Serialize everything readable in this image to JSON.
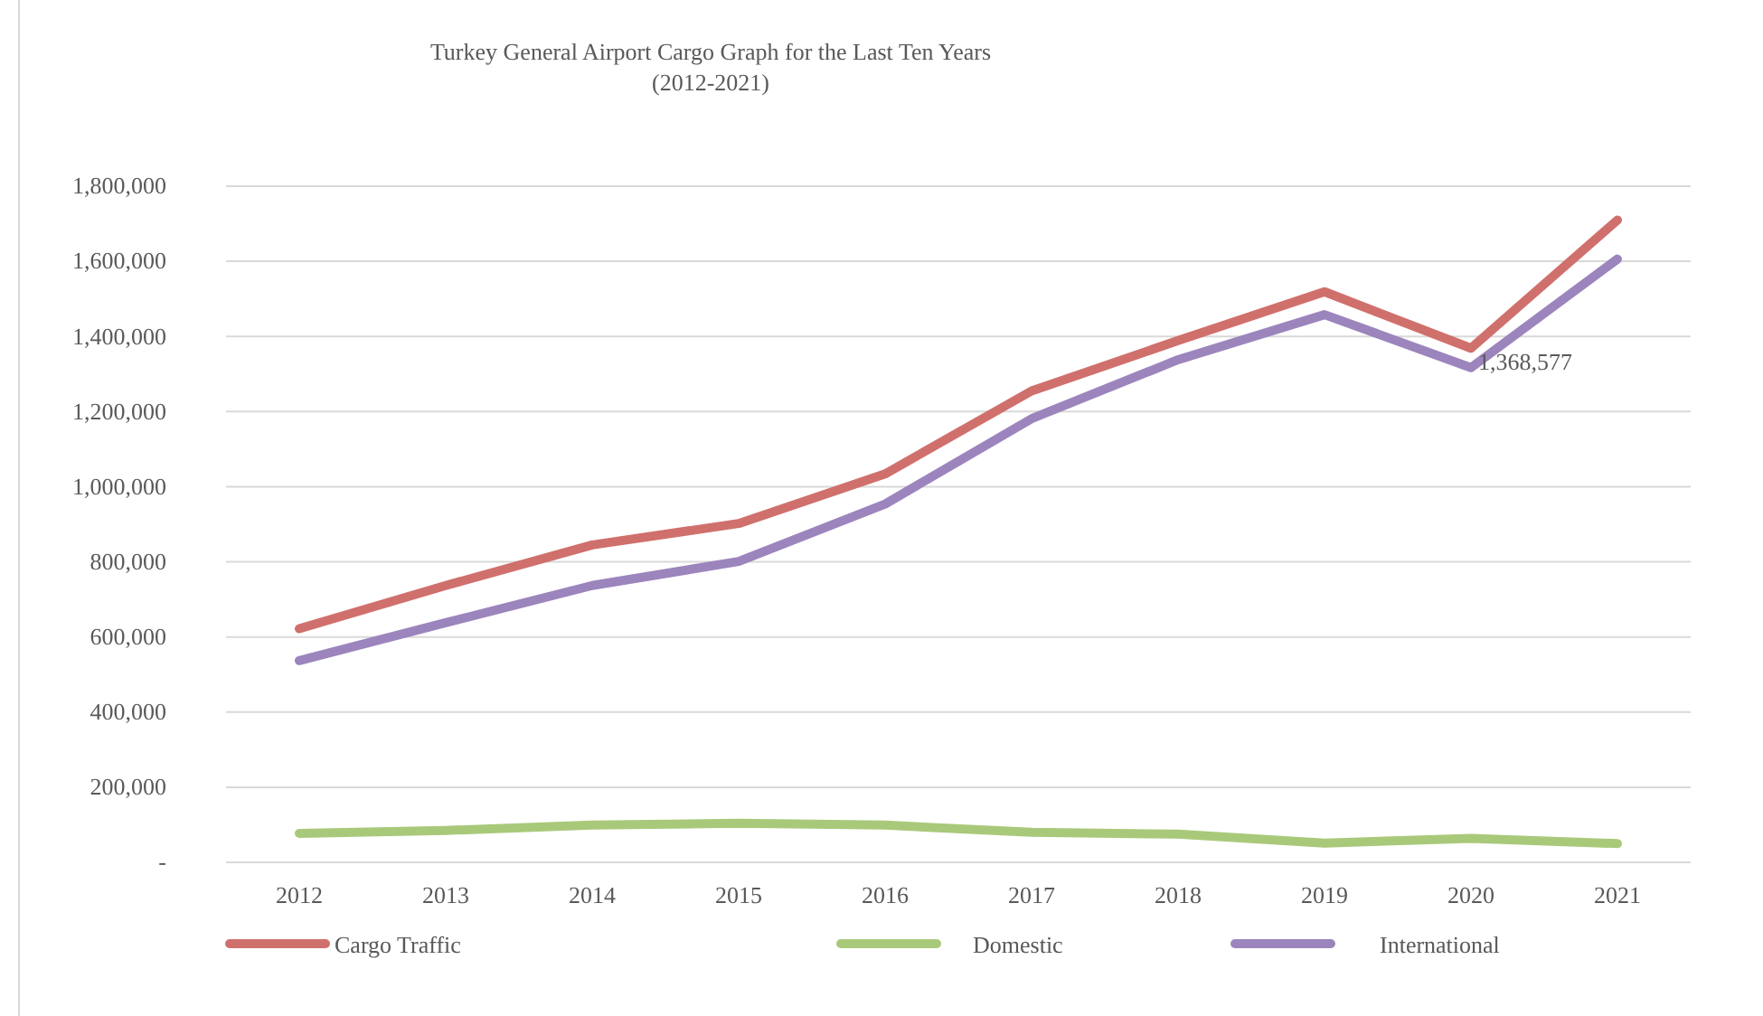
{
  "chart_data": {
    "type": "line",
    "title": "Turkey General Airport Cargo Graph for the Last Ten Years",
    "subtitle": "(2012-2021)",
    "categories": [
      "2012",
      "2013",
      "2014",
      "2015",
      "2016",
      "2017",
      "2018",
      "2019",
      "2020",
      "2021"
    ],
    "series": [
      {
        "name": "Cargo Traffic",
        "color": "#d0706c",
        "values": [
          622000,
          737000,
          845000,
          902000,
          1034000,
          1255000,
          1389000,
          1519000,
          1368577,
          1710000
        ],
        "value_labels": [
          null,
          null,
          null,
          null,
          null,
          null,
          null,
          null,
          "1,368,577",
          null
        ]
      },
      {
        "name": "Domestic",
        "color": "#a9c97a",
        "values": [
          77000,
          85000,
          99000,
          104000,
          99000,
          80000,
          75000,
          51000,
          64000,
          50000
        ]
      },
      {
        "name": "International",
        "color": "#9c85bd",
        "values": [
          537000,
          638000,
          737000,
          801000,
          954000,
          1181000,
          1338000,
          1458000,
          1317000,
          1606000
        ]
      }
    ],
    "ylim": [
      0,
      1800000
    ],
    "yticks": [
      {
        "value": 0,
        "label": "-"
      },
      {
        "value": 200000,
        "label": "200,000"
      },
      {
        "value": 400000,
        "label": "400,000"
      },
      {
        "value": 600000,
        "label": "600,000"
      },
      {
        "value": 800000,
        "label": "800,000"
      },
      {
        "value": 1000000,
        "label": "1,000,000"
      },
      {
        "value": 1200000,
        "label": "1,200,000"
      },
      {
        "value": 1400000,
        "label": "1,400,000"
      },
      {
        "value": 1600000,
        "label": "1,600,000"
      },
      {
        "value": 1800000,
        "label": "1,800,000"
      }
    ],
    "grid": "y",
    "legend": "bottom",
    "marker": "none",
    "line_style": "solid"
  }
}
